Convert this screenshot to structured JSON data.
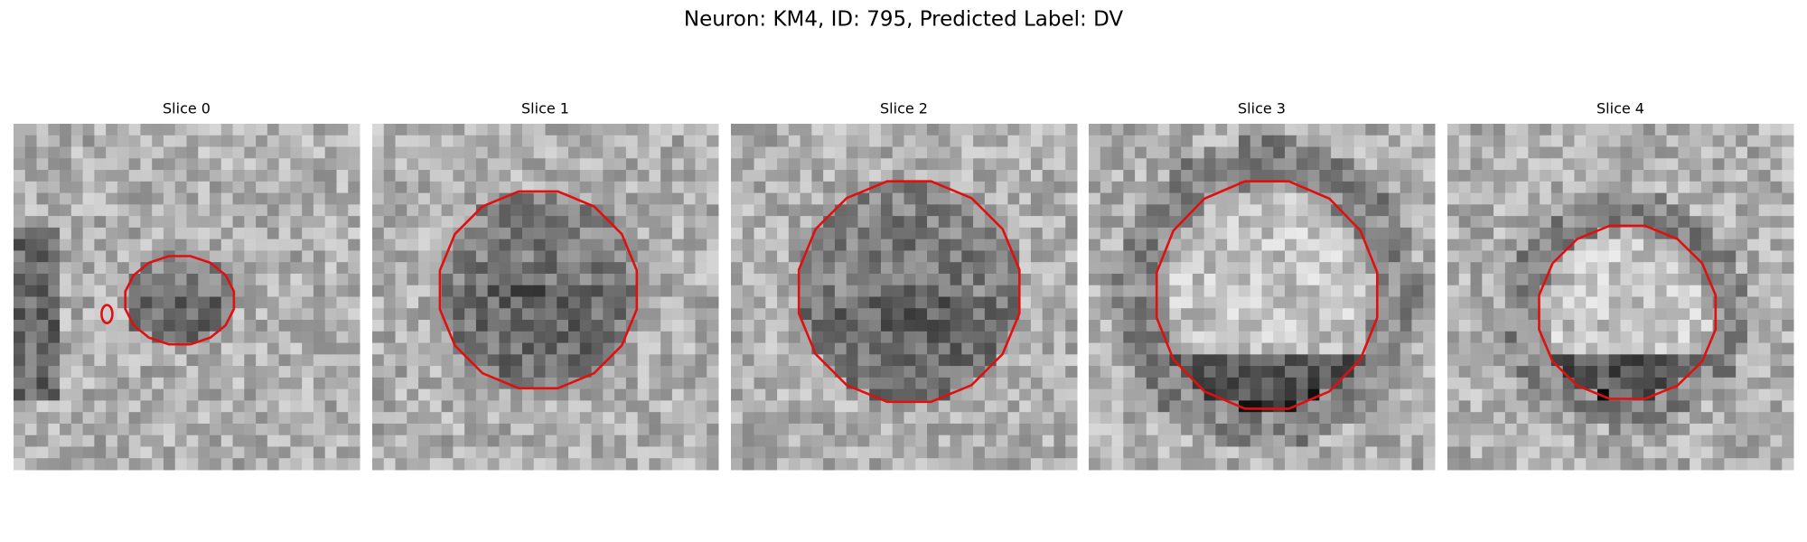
{
  "title": "Neuron: KM4, ID: 795, Predicted Label: DV",
  "panels": [
    {
      "title": "Slice 0"
    },
    {
      "title": "Slice 1"
    },
    {
      "title": "Slice 2"
    },
    {
      "title": "Slice 3"
    },
    {
      "title": "Slice 4"
    }
  ]
}
